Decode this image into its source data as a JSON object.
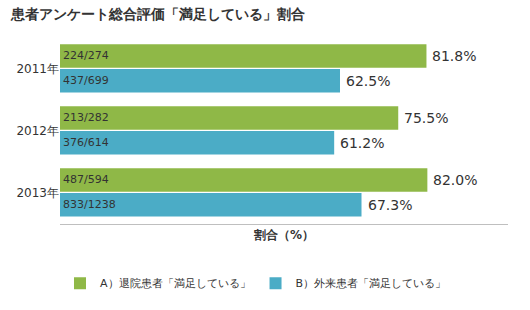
{
  "chart_data": {
    "type": "bar",
    "title": "患者アンケート総合評価「満足している」割合",
    "xlabel": "割合（%）",
    "orientation": "horizontal",
    "categories": [
      "2011年",
      "2012年",
      "2013年"
    ],
    "series": [
      {
        "name": "A）退院患者「満足している」",
        "color": "#8FB847",
        "values": [
          81.8,
          75.5,
          82.0
        ],
        "value_labels": [
          "81.8%",
          "75.5%",
          "82.0%"
        ],
        "fractions": [
          "224/274",
          "213/282",
          "487/594"
        ]
      },
      {
        "name": "B）外来患者「満足している」",
        "color": "#4BACC6",
        "values": [
          62.5,
          61.2,
          67.3
        ],
        "value_labels": [
          "62.5%",
          "61.2%",
          "67.3%"
        ],
        "fractions": [
          "437/699",
          "376/614",
          "833/1238"
        ]
      }
    ],
    "xlim": [
      0,
      100
    ],
    "data_labels": true,
    "grid": false,
    "legend": "bottom left",
    "tick_labels": "y"
  }
}
